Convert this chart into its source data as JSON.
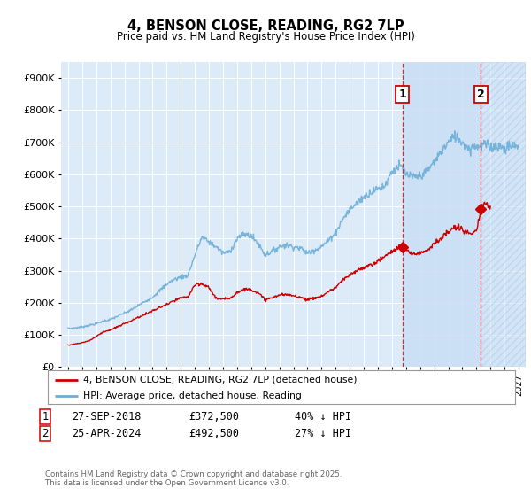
{
  "title": "4, BENSON CLOSE, READING, RG2 7LP",
  "subtitle": "Price paid vs. HM Land Registry's House Price Index (HPI)",
  "background_color": "#ffffff",
  "plot_bg_color": "#ddeaf7",
  "grid_color": "#ffffff",
  "hpi_color": "#6baed6",
  "price_color": "#cc0000",
  "vline_color": "#cc0000",
  "annotation1_label": "1",
  "annotation2_label": "2",
  "vline1_x": 2018.74,
  "vline2_x": 2024.32,
  "transaction1_x": 2018.74,
  "transaction1_y": 372500,
  "transaction2_x": 2024.32,
  "transaction2_y": 492500,
  "legend_label_price": "4, BENSON CLOSE, READING, RG2 7LP (detached house)",
  "legend_label_hpi": "HPI: Average price, detached house, Reading",
  "copyright": "Contains HM Land Registry data © Crown copyright and database right 2025.\nThis data is licensed under the Open Government Licence v3.0.",
  "ylim": [
    0,
    950000
  ],
  "xlim": [
    1994.5,
    2027.5
  ],
  "yticks": [
    0,
    100000,
    200000,
    300000,
    400000,
    500000,
    600000,
    700000,
    800000,
    900000
  ],
  "ytick_labels": [
    "£0",
    "£100K",
    "£200K",
    "£300K",
    "£400K",
    "£500K",
    "£600K",
    "£700K",
    "£800K",
    "£900K"
  ],
  "xticks": [
    1995,
    1996,
    1997,
    1998,
    1999,
    2000,
    2001,
    2002,
    2003,
    2004,
    2005,
    2006,
    2007,
    2008,
    2009,
    2010,
    2011,
    2012,
    2013,
    2014,
    2015,
    2016,
    2017,
    2018,
    2019,
    2020,
    2021,
    2022,
    2023,
    2024,
    2025,
    2026,
    2027
  ],
  "hpi_anchors": {
    "1995.0": 120000,
    "1995.5": 122000,
    "1996.0": 125000,
    "1997.0": 135000,
    "1997.5": 143000,
    "1998.0": 148000,
    "1998.5": 158000,
    "1999.0": 168000,
    "1999.5": 178000,
    "2000.0": 192000,
    "2000.5": 205000,
    "2001.0": 218000,
    "2001.5": 238000,
    "2002.0": 258000,
    "2002.5": 272000,
    "2003.0": 280000,
    "2003.5": 285000,
    "2004.0": 348000,
    "2004.5": 405000,
    "2005.0": 390000,
    "2005.5": 375000,
    "2006.0": 355000,
    "2006.5": 360000,
    "2007.0": 400000,
    "2007.5": 415000,
    "2008.0": 408000,
    "2008.5": 385000,
    "2009.0": 350000,
    "2009.5": 360000,
    "2010.0": 375000,
    "2010.5": 380000,
    "2011.0": 375000,
    "2011.5": 370000,
    "2012.0": 355000,
    "2012.5": 365000,
    "2013.0": 375000,
    "2013.5": 395000,
    "2014.0": 420000,
    "2014.5": 460000,
    "2015.0": 490000,
    "2015.5": 510000,
    "2016.0": 530000,
    "2016.5": 545000,
    "2017.0": 555000,
    "2017.5": 565000,
    "2018.0": 610000,
    "2018.5": 625000,
    "2018.74": 620000,
    "2019.0": 600000,
    "2019.5": 590000,
    "2020.0": 595000,
    "2020.5": 610000,
    "2021.0": 640000,
    "2021.5": 670000,
    "2022.0": 700000,
    "2022.5": 720000,
    "2023.0": 700000,
    "2023.5": 680000,
    "2024.0": 690000,
    "2024.32": 685000,
    "2024.5": 695000,
    "2025.0": 685000,
    "2025.5": 690000,
    "2026.0": 680000,
    "2026.5": 690000,
    "2027.0": 685000
  },
  "price_anchors": {
    "1995.0": 68000,
    "1995.5": 72000,
    "1996.0": 76000,
    "1996.5": 82000,
    "1997.0": 95000,
    "1997.5": 110000,
    "1998.0": 115000,
    "1998.5": 125000,
    "1999.0": 135000,
    "1999.5": 145000,
    "2000.0": 155000,
    "2000.5": 165000,
    "2001.0": 175000,
    "2001.5": 185000,
    "2002.0": 195000,
    "2002.5": 205000,
    "2003.0": 215000,
    "2003.5": 218000,
    "2004.0": 255000,
    "2004.5": 258000,
    "2005.0": 248000,
    "2005.5": 215000,
    "2006.0": 210000,
    "2006.5": 215000,
    "2007.0": 232000,
    "2007.5": 242000,
    "2008.0": 242000,
    "2008.5": 230000,
    "2009.0": 210000,
    "2009.5": 215000,
    "2010.0": 225000,
    "2010.5": 225000,
    "2011.0": 222000,
    "2011.5": 218000,
    "2012.0": 210000,
    "2012.5": 215000,
    "2013.0": 220000,
    "2013.5": 235000,
    "2014.0": 248000,
    "2014.5": 270000,
    "2015.0": 285000,
    "2015.5": 300000,
    "2016.0": 310000,
    "2016.5": 318000,
    "2017.0": 330000,
    "2017.5": 345000,
    "2018.0": 360000,
    "2018.5": 375000,
    "2018.74": 372500,
    "2019.0": 362000,
    "2019.5": 352000,
    "2020.0": 355000,
    "2020.5": 365000,
    "2021.0": 385000,
    "2021.5": 400000,
    "2022.0": 420000,
    "2022.5": 435000,
    "2023.0": 430000,
    "2023.5": 415000,
    "2024.0": 418000,
    "2024.32": 492500,
    "2024.5": 510000,
    "2025.0": 500000
  }
}
